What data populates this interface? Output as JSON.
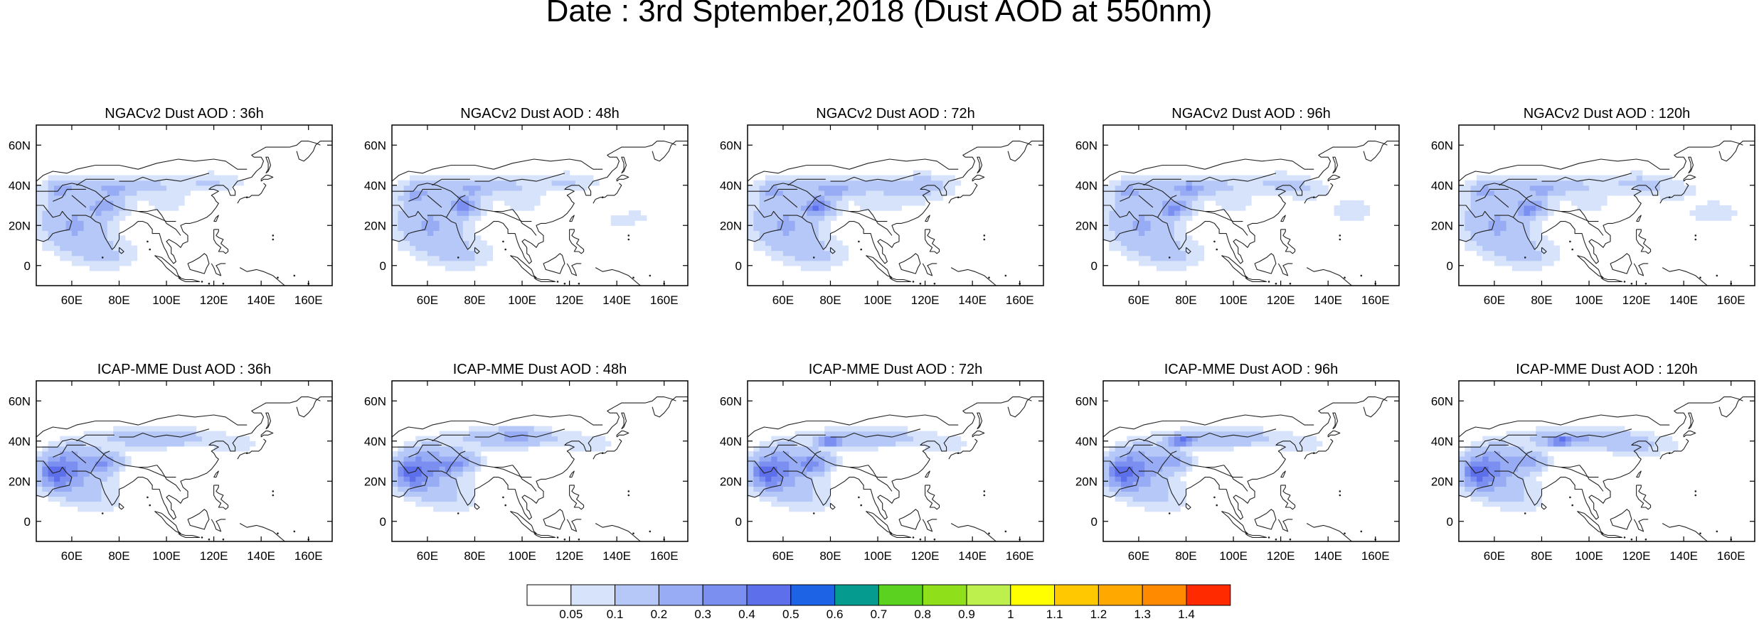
{
  "title": "Date : 3rd Sptember,2018 (Dust AOD at 550nm)",
  "axes": {
    "lon_range": [
      45,
      170
    ],
    "lat_range": [
      -10,
      70
    ],
    "lon_ticks": [
      60,
      80,
      100,
      120,
      140,
      160
    ],
    "lon_tick_labels": [
      "60E",
      "80E",
      "100E",
      "120E",
      "140E",
      "160E"
    ],
    "lat_ticks": [
      0,
      20,
      40,
      60
    ],
    "lat_tick_labels": [
      "0",
      "20N",
      "40N",
      "60N"
    ]
  },
  "panels": [
    {
      "title": "NGACv2 Dust AOD : 36h",
      "model": "ngac",
      "lead": 36
    },
    {
      "title": "NGACv2 Dust AOD : 48h",
      "model": "ngac",
      "lead": 48
    },
    {
      "title": "NGACv2 Dust AOD : 72h",
      "model": "ngac",
      "lead": 72
    },
    {
      "title": "NGACv2 Dust AOD : 96h",
      "model": "ngac",
      "lead": 96
    },
    {
      "title": "NGACv2 Dust AOD : 120h",
      "model": "ngac",
      "lead": 120
    },
    {
      "title": "ICAP-MME Dust AOD : 36h",
      "model": "icap",
      "lead": 36
    },
    {
      "title": "ICAP-MME Dust AOD : 48h",
      "model": "icap",
      "lead": 48
    },
    {
      "title": "ICAP-MME Dust AOD : 72h",
      "model": "icap",
      "lead": 72
    },
    {
      "title": "ICAP-MME Dust AOD : 96h",
      "model": "icap",
      "lead": 96
    },
    {
      "title": "ICAP-MME Dust AOD : 120h",
      "model": "icap",
      "lead": 120
    }
  ],
  "colorbar": {
    "labels": [
      "0.05",
      "0.1",
      "0.2",
      "0.3",
      "0.4",
      "0.5",
      "0.6",
      "0.7",
      "0.8",
      "0.9",
      "1",
      "1.1",
      "1.2",
      "1.3",
      "1.4"
    ],
    "colors": [
      "#ffffff",
      "#d7e3fb",
      "#b6c8f7",
      "#97acf4",
      "#7b8ff1",
      "#5d6fea",
      "#1d63e6",
      "#059b8f",
      "#5bd21f",
      "#8fe01a",
      "#bdf04c",
      "#ffff00",
      "#ffc800",
      "#ffa800",
      "#ff8a00",
      "#ff2a00"
    ]
  }
}
